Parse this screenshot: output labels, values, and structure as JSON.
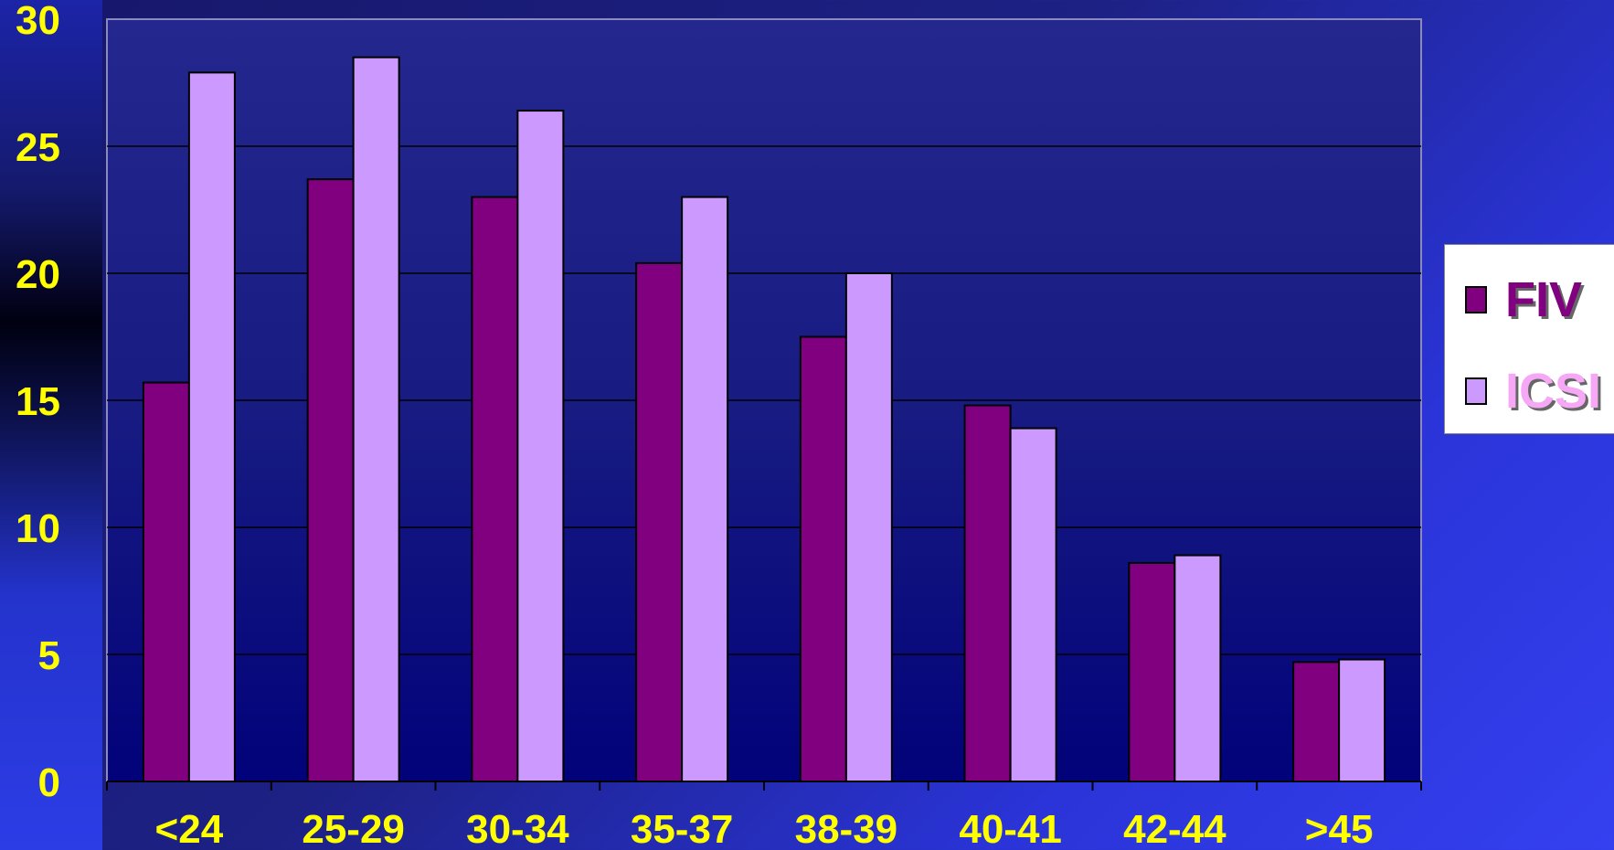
{
  "chart_data": {
    "type": "bar",
    "categories": [
      "<24",
      "25-29",
      "30-34",
      "35-37",
      "38-39",
      "40-41",
      "42-44",
      ">45"
    ],
    "series": [
      {
        "name": "FIV",
        "values": [
          15.7,
          23.7,
          23.0,
          20.4,
          17.5,
          14.8,
          8.6,
          4.7
        ],
        "color": "#800080"
      },
      {
        "name": "ICSI",
        "values": [
          27.9,
          28.5,
          26.4,
          23.0,
          20.0,
          13.9,
          8.9,
          4.8
        ],
        "color": "#cc99ff"
      }
    ],
    "yticks": [
      0,
      5,
      10,
      15,
      20,
      25,
      30
    ],
    "ylim": [
      0,
      30
    ],
    "grid": true,
    "legend_position": "right",
    "colors": {
      "tick_label": "#ffff00",
      "gridline": "#000000",
      "plot_border": "#8a8ac0"
    }
  }
}
